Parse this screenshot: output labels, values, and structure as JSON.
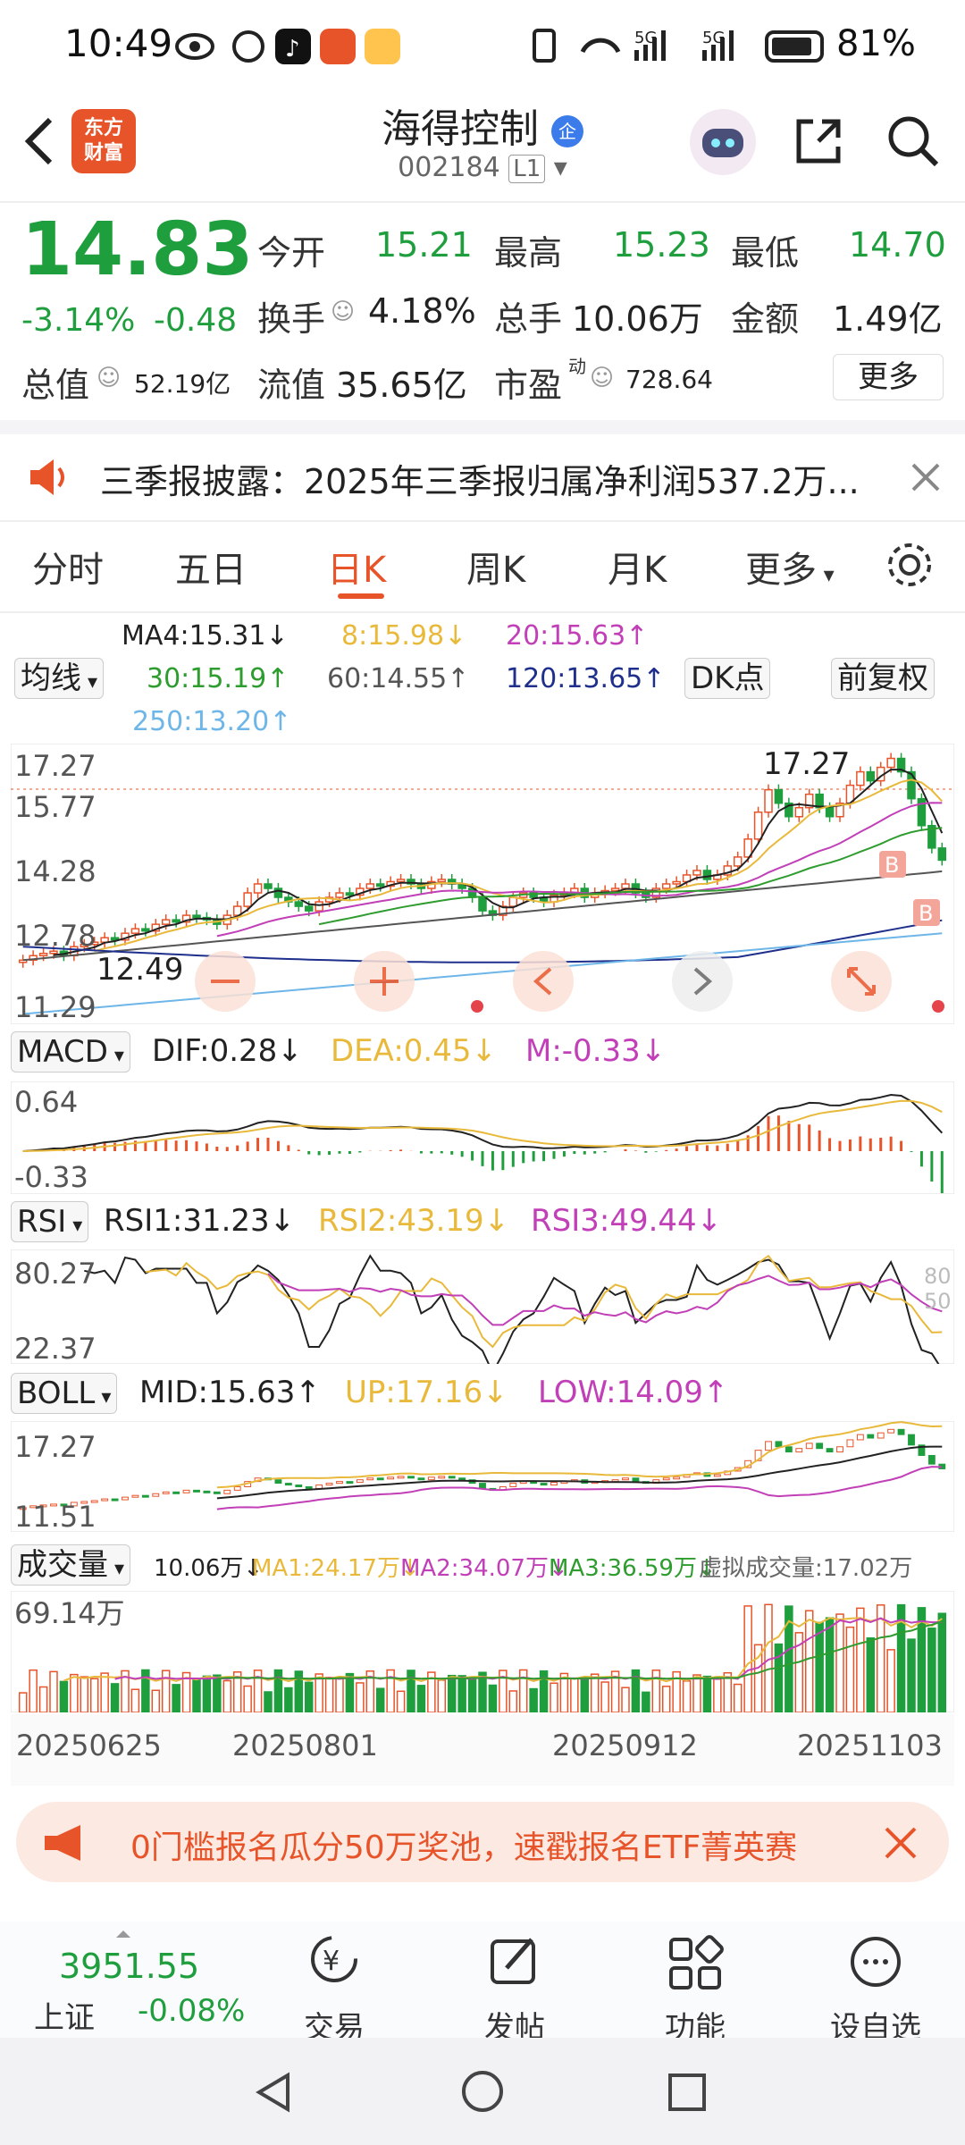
{
  "status_bar": {
    "time": "10:49",
    "battery": "81%",
    "net1": "5G",
    "net2": "5G"
  },
  "header": {
    "logo_line1": "东方",
    "logo_line2": "财富",
    "stock_name": "海得控制",
    "badge": "企",
    "code": "002184",
    "level": "L1"
  },
  "quote": {
    "price": "14.83",
    "change_pct": "-3.14%",
    "change": "-0.48",
    "open_label": "今开",
    "open": "15.21",
    "high_label": "最高",
    "high": "15.23",
    "low_label": "最低",
    "low": "14.70",
    "turnover_label": "换手",
    "turnover": "4.18%",
    "volume_label": "总手",
    "volume": "10.06万",
    "amount_label": "金额",
    "amount": "1.49亿",
    "mktcap_label": "总值",
    "mktcap": "52.19亿",
    "float_label": "流值",
    "float_cap": "35.65亿",
    "pe_label": "市盈",
    "pe_sup": "动",
    "pe": "728.64",
    "more_button": "更多"
  },
  "announcement": {
    "text": "三季报披露：2025年三季报归属净利润537.2万..."
  },
  "tabs": [
    "分时",
    "五日",
    "日K",
    "周K",
    "月K",
    "更多"
  ],
  "active_tab": "日K",
  "ma_legend": {
    "selector": "均线",
    "ma4": "MA4:15.31↓",
    "ma8": "8:15.98↓",
    "ma20": "20:15.63↑",
    "ma30": "30:15.19↑",
    "ma60": "60:14.55↑",
    "ma120": "120:13.65↑",
    "ma250": "250:13.20↑",
    "dk_button": "DK点",
    "adj_button": "前复权"
  },
  "chart_data": {
    "type": "candlestick",
    "price_axis": {
      "max": "17.27",
      "t2": "15.77",
      "t3": "14.28",
      "t4": "12.78",
      "min": "11.29"
    },
    "high_marker": "17.27",
    "low_marker": "12.49",
    "dates": [
      "20250625",
      "20250801",
      "20250912",
      "20251103"
    ],
    "closes": [
      12.6,
      12.7,
      12.75,
      12.8,
      12.7,
      12.9,
      12.95,
      13.0,
      13.1,
      13.05,
      13.2,
      13.3,
      13.25,
      13.4,
      13.5,
      13.45,
      13.6,
      13.55,
      13.5,
      13.4,
      13.6,
      13.8,
      14.1,
      14.3,
      14.2,
      14.0,
      13.9,
      13.8,
      13.7,
      13.9,
      14.0,
      14.1,
      14.05,
      14.2,
      14.3,
      14.25,
      14.35,
      14.4,
      14.3,
      14.2,
      14.35,
      14.4,
      14.3,
      14.2,
      14.0,
      13.7,
      13.6,
      13.8,
      14.0,
      14.1,
      14.0,
      13.9,
      14.05,
      14.1,
      14.2,
      14.0,
      14.1,
      14.15,
      14.2,
      14.3,
      14.1,
      14.0,
      14.2,
      14.3,
      14.35,
      14.5,
      14.6,
      14.4,
      14.5,
      14.7,
      14.9,
      15.3,
      15.9,
      16.4,
      16.1,
      15.8,
      16.0,
      16.3,
      16.0,
      15.8,
      16.1,
      16.5,
      16.8,
      16.6,
      16.9,
      17.1,
      16.8,
      16.2,
      15.6,
      15.1,
      14.83
    ],
    "macd": {
      "label": "MACD",
      "dif": "DIF:0.28↓",
      "dea": "DEA:0.45↓",
      "m": "M:-0.33↓",
      "max": "0.64",
      "min": "-0.33"
    },
    "rsi": {
      "label": "RSI",
      "rsi1": "RSI1:31.23↓",
      "rsi2": "RSI2:43.19↓",
      "rsi3": "RSI3:49.44↓",
      "max": "80.27",
      "min": "22.37",
      "r80": "80",
      "r50": "50"
    },
    "boll": {
      "label": "BOLL",
      "mid": "MID:15.63↑",
      "up": "UP:17.16↓",
      "low": "LOW:14.09↑",
      "max": "17.27",
      "min": "11.51"
    },
    "volume": {
      "label": "成交量",
      "vol": "10.06万↓",
      "ma1": "MA1:24.17万↓",
      "ma2": "MA2:34.07万↓",
      "ma3": "MA3:36.59万↓",
      "virtual": "虚拟成交量:17.02万",
      "max": "69.14万"
    }
  },
  "promo": {
    "text": "0门槛报名瓜分50万奖池，速戳报名ETF菁英赛"
  },
  "bottom_bar": {
    "index_value": "3951.55",
    "index_name": "上证",
    "index_change": "-0.08%",
    "trade": "交易",
    "post": "发帖",
    "func": "功能",
    "watch": "设自选"
  },
  "colors": {
    "up": "#e8542a",
    "down": "#1f9e3e",
    "accent": "#e8542a"
  }
}
